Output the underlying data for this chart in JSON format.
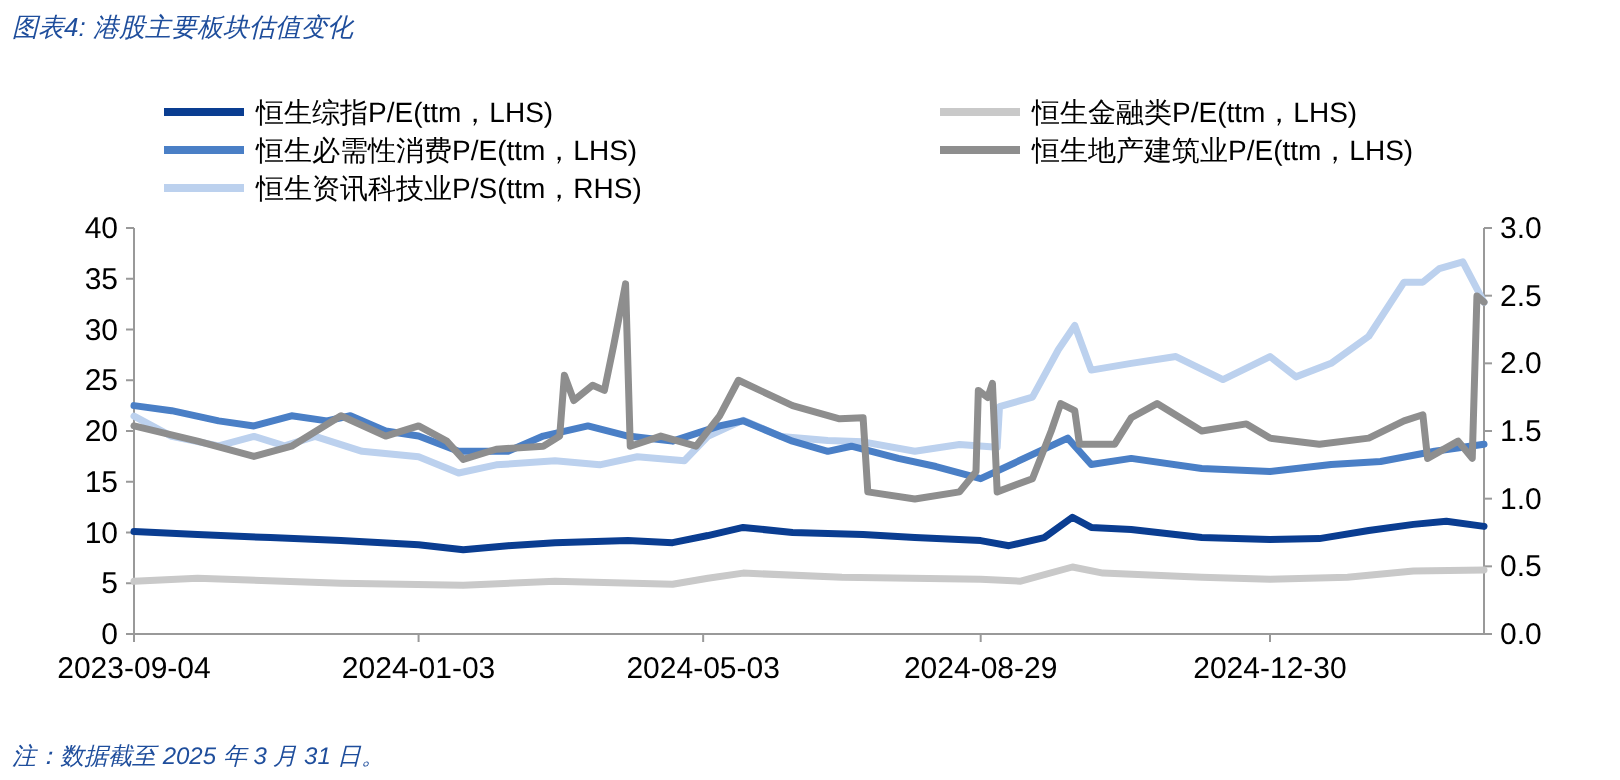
{
  "chart_data": {
    "type": "line",
    "title": "图表4: 港股主要板块估值变化",
    "annotations": [
      "注：数据截至 2025 年 3 月 31 日。"
    ],
    "legend": "top",
    "grid": false,
    "line_style": "solid",
    "xlim": [
      "2023-09-04",
      "2025-03-31"
    ],
    "xticks": [
      {
        "value": "2023-09-04",
        "label": "2023-09-04"
      },
      {
        "value": "2024-01-03",
        "label": "2024-01-03"
      },
      {
        "value": "2024-05-03",
        "label": "2024-05-03"
      },
      {
        "value": "2024-08-29",
        "label": "2024-08-29"
      },
      {
        "value": "2024-12-30",
        "label": "2024-12-30"
      }
    ],
    "ylim": [
      0,
      40
    ],
    "yticks": [
      0,
      5,
      10,
      15,
      20,
      25,
      30,
      35,
      40
    ],
    "y2lim": [
      0,
      3
    ],
    "y2ticks": [
      {
        "value": 0,
        "label": "0.0"
      },
      {
        "value": 0.5,
        "label": "0.5"
      },
      {
        "value": 1,
        "label": "1.0"
      },
      {
        "value": 1.5,
        "label": "1.5"
      },
      {
        "value": 2,
        "label": "2.0"
      },
      {
        "value": 2.5,
        "label": "2.5"
      },
      {
        "value": 3,
        "label": "3.0"
      }
    ],
    "series": [
      {
        "name": "恒生综指P/E(ttm，LHS)",
        "color": "#0a3d91",
        "x": [
          "2023-09-04",
          "2023-10-01",
          "2023-11-01",
          "2023-12-01",
          "2024-01-03",
          "2024-01-22",
          "2024-02-10",
          "2024-03-01",
          "2024-04-01",
          "2024-04-20",
          "2024-05-05",
          "2024-05-20",
          "2024-06-10",
          "2024-07-10",
          "2024-08-01",
          "2024-08-29",
          "2024-09-10",
          "2024-09-25",
          "2024-10-07",
          "2024-10-15",
          "2024-11-01",
          "2024-12-01",
          "2024-12-30",
          "2025-01-20",
          "2025-02-10",
          "2025-03-01",
          "2025-03-15",
          "2025-03-31"
        ],
        "values": [
          10.1,
          9.8,
          9.5,
          9.2,
          8.8,
          8.3,
          8.7,
          9.0,
          9.2,
          9.0,
          9.7,
          10.5,
          10.0,
          9.8,
          9.5,
          9.2,
          8.7,
          9.5,
          11.5,
          10.5,
          10.3,
          9.5,
          9.3,
          9.4,
          10.2,
          10.8,
          11.1,
          10.6
        ]
      },
      {
        "name": "恒生金融类P/E(ttm，LHS)",
        "color": "#c9c9c9",
        "x": [
          "2023-09-04",
          "2023-10-01",
          "2023-12-01",
          "2024-01-22",
          "2024-03-01",
          "2024-04-20",
          "2024-05-05",
          "2024-05-20",
          "2024-07-01",
          "2024-08-29",
          "2024-09-15",
          "2024-10-07",
          "2024-10-20",
          "2024-12-01",
          "2024-12-30",
          "2025-02-01",
          "2025-03-01",
          "2025-03-31"
        ],
        "values": [
          5.2,
          5.5,
          5.0,
          4.8,
          5.2,
          4.9,
          5.5,
          6.0,
          5.6,
          5.4,
          5.2,
          6.6,
          6.0,
          5.6,
          5.4,
          5.6,
          6.2,
          6.3
        ]
      },
      {
        "name": "恒生必需性消费P/E(ttm，LHS)",
        "color": "#4a7fc6",
        "x": [
          "2023-09-04",
          "2023-09-20",
          "2023-10-10",
          "2023-10-25",
          "2023-11-10",
          "2023-11-25",
          "2023-12-05",
          "2023-12-20",
          "2024-01-03",
          "2024-01-20",
          "2024-02-10",
          "2024-02-25",
          "2024-03-15",
          "2024-04-01",
          "2024-04-20",
          "2024-05-10",
          "2024-05-20",
          "2024-06-10",
          "2024-06-25",
          "2024-07-05",
          "2024-07-25",
          "2024-08-10",
          "2024-08-29",
          "2024-10-05",
          "2024-10-15",
          "2024-11-01",
          "2024-12-01",
          "2024-12-30",
          "2025-01-25",
          "2025-02-15",
          "2025-03-10",
          "2025-03-31"
        ],
        "values": [
          22.5,
          22.0,
          21.0,
          20.5,
          21.5,
          21.0,
          21.5,
          20.0,
          19.5,
          18.0,
          18.0,
          19.5,
          20.5,
          19.5,
          19.0,
          20.5,
          21.0,
          19.0,
          18.0,
          18.5,
          17.3,
          16.5,
          15.3,
          19.3,
          16.7,
          17.3,
          16.3,
          16.0,
          16.7,
          17.0,
          18.0,
          18.7
        ]
      },
      {
        "name": "恒生地产建筑业P/E(ttm，LHS)",
        "color": "#8e8e8e",
        "x": [
          "2023-09-04",
          "2023-10-01",
          "2023-10-25",
          "2023-11-10",
          "2023-12-01",
          "2023-12-20",
          "2024-01-03",
          "2024-01-15",
          "2024-01-22",
          "2024-02-05",
          "2024-02-25",
          "2024-03-03",
          "2024-03-05",
          "2024-03-09",
          "2024-03-17",
          "2024-03-22",
          "2024-03-26",
          "2024-03-31",
          "2024-04-02",
          "2024-04-15",
          "2024-04-30",
          "2024-05-10",
          "2024-05-18",
          "2024-06-10",
          "2024-06-30",
          "2024-07-10",
          "2024-07-12",
          "2024-08-01",
          "2024-08-20",
          "2024-08-27",
          "2024-08-28",
          "2024-09-01",
          "2024-09-03",
          "2024-09-05",
          "2024-09-20",
          "2024-09-28",
          "2024-10-02",
          "2024-10-08",
          "2024-10-10",
          "2024-10-25",
          "2024-11-01",
          "2024-11-12",
          "2024-12-01",
          "2024-12-20",
          "2024-12-30",
          "2025-01-20",
          "2025-02-10",
          "2025-02-25",
          "2025-03-05",
          "2025-03-07",
          "2025-03-20",
          "2025-03-26",
          "2025-03-28",
          "2025-03-31"
        ],
        "values": [
          20.5,
          19.0,
          17.5,
          18.5,
          21.5,
          19.5,
          20.5,
          19.0,
          17.2,
          18.2,
          18.5,
          19.5,
          25.5,
          23.0,
          24.5,
          24.0,
          28.5,
          34.5,
          18.5,
          19.5,
          18.5,
          21.5,
          25.0,
          22.5,
          21.2,
          21.3,
          14.0,
          13.3,
          14.0,
          16.0,
          24.0,
          23.3,
          24.7,
          14.0,
          15.3,
          20.0,
          22.7,
          22.0,
          18.7,
          18.7,
          21.3,
          22.7,
          20.0,
          20.7,
          19.3,
          18.7,
          19.3,
          21.0,
          21.6,
          17.3,
          19.0,
          17.3,
          33.3,
          32.7
        ]
      },
      {
        "name": "恒生资讯科技业P/S(ttm，RHS)",
        "color": "#bcd1ee",
        "axis": "y2",
        "x": [
          "2023-09-04",
          "2023-09-20",
          "2023-10-10",
          "2023-10-25",
          "2023-11-07",
          "2023-11-20",
          "2023-12-10",
          "2024-01-03",
          "2024-01-20",
          "2024-02-05",
          "2024-03-01",
          "2024-03-20",
          "2024-04-05",
          "2024-04-25",
          "2024-05-05",
          "2024-05-20",
          "2024-06-05",
          "2024-06-25",
          "2024-07-10",
          "2024-08-01",
          "2024-08-20",
          "2024-09-05",
          "2024-09-06",
          "2024-09-20",
          "2024-10-01",
          "2024-10-08",
          "2024-10-15",
          "2024-11-01",
          "2024-11-20",
          "2024-12-10",
          "2024-12-30",
          "2025-01-10",
          "2025-01-25",
          "2025-02-10",
          "2025-02-25",
          "2025-03-05",
          "2025-03-12",
          "2025-03-22",
          "2025-03-31"
        ],
        "values": [
          1.61,
          1.46,
          1.39,
          1.46,
          1.39,
          1.46,
          1.35,
          1.31,
          1.19,
          1.25,
          1.28,
          1.25,
          1.31,
          1.28,
          1.46,
          1.58,
          1.46,
          1.43,
          1.42,
          1.35,
          1.4,
          1.38,
          1.68,
          1.75,
          2.1,
          2.28,
          1.95,
          2.0,
          2.05,
          1.88,
          2.05,
          1.9,
          2.0,
          2.2,
          2.6,
          2.6,
          2.7,
          2.75,
          2.45
        ]
      }
    ]
  }
}
